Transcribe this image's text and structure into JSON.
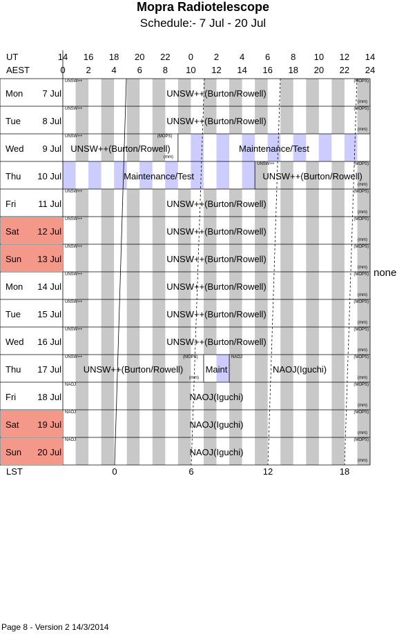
{
  "title": "Mopra Radiotelescope",
  "subtitle": "Schedule:- 7  Jul - 20 Jul",
  "ut_label": "UT",
  "aest_label": "AEST",
  "lst_label": "LST",
  "ut_ticks": [
    "14",
    "16",
    "18",
    "20",
    "22",
    "0",
    "2",
    "4",
    "6",
    "8",
    "10",
    "12",
    "14"
  ],
  "aest_ticks": [
    "0",
    "2",
    "4",
    "6",
    "8",
    "10",
    "12",
    "14",
    "16",
    "18",
    "20",
    "22",
    "24"
  ],
  "lst_ticks": [
    "0",
    "6",
    "12",
    "18"
  ],
  "none_label": "none",
  "footer": "Page 8 - Version 2  14/3/2014",
  "colors": {
    "weekend": "#f4988a",
    "stripe": "#c8c8c8",
    "maint": "#ccccff"
  },
  "days": [
    {
      "name": "Mon",
      "date": "7  Jul",
      "weekend": false
    },
    {
      "name": "Tue",
      "date": "8  Jul",
      "weekend": false
    },
    {
      "name": "Wed",
      "date": "9  Jul",
      "weekend": false
    },
    {
      "name": "Thu",
      "date": "10 Jul",
      "weekend": false
    },
    {
      "name": "Fri",
      "date": "11 Jul",
      "weekend": false
    },
    {
      "name": "Sat",
      "date": "12 Jul",
      "weekend": true
    },
    {
      "name": "Sun",
      "date": "13 Jul",
      "weekend": true
    },
    {
      "name": "Mon",
      "date": "14 Jul",
      "weekend": false
    },
    {
      "name": "Tue",
      "date": "15 Jul",
      "weekend": false
    },
    {
      "name": "Wed",
      "date": "16 Jul",
      "weekend": false
    },
    {
      "name": "Thu",
      "date": "17 Jul",
      "weekend": false
    },
    {
      "name": "Fri",
      "date": "18 Jul",
      "weekend": false
    },
    {
      "name": "Sat",
      "date": "19 Jul",
      "weekend": true
    },
    {
      "name": "Sun",
      "date": "20 Jul",
      "weekend": true
    }
  ],
  "rows": [
    {
      "segments": [
        {
          "start": 0,
          "end": 24,
          "label": "UNSW++(Burton/Rowell)",
          "tag": "UNSW++",
          "maint": false
        }
      ],
      "mops": true
    },
    {
      "segments": [
        {
          "start": 0,
          "end": 24,
          "label": "UNSW++(Burton/Rowell)",
          "tag": "UNSW++",
          "maint": false
        }
      ],
      "mops": true
    },
    {
      "segments": [
        {
          "start": 0,
          "end": 9,
          "label": "UNSW++(Burton/Rowell)",
          "tag": "UNSW++",
          "maint": false,
          "mops": true
        },
        {
          "start": 9,
          "end": 24,
          "label": "Maintenance/Test",
          "tag": "",
          "maint": true
        }
      ],
      "mops": false
    },
    {
      "segments": [
        {
          "start": 0,
          "end": 15,
          "label": "Maintenance/Test",
          "tag": "",
          "maint": true
        },
        {
          "start": 15,
          "end": 24,
          "label": "UNSW++(Burton/Rowell)",
          "tag": "UNSW++",
          "maint": false
        }
      ],
      "mops": true
    },
    {
      "segments": [
        {
          "start": 0,
          "end": 24,
          "label": "UNSW++(Burton/Rowell)",
          "tag": "UNSW++",
          "maint": false
        }
      ],
      "mops": true
    },
    {
      "segments": [
        {
          "start": 0,
          "end": 24,
          "label": "UNSW++(Burton/Rowell)",
          "tag": "UNSW++",
          "maint": false
        }
      ],
      "mops": true
    },
    {
      "segments": [
        {
          "start": 0,
          "end": 24,
          "label": "UNSW++(Burton/Rowell)",
          "tag": "UNSW++",
          "maint": false
        }
      ],
      "mops": true
    },
    {
      "segments": [
        {
          "start": 0,
          "end": 24,
          "label": "UNSW++(Burton/Rowell)",
          "tag": "UNSW++",
          "maint": false
        }
      ],
      "mops": true
    },
    {
      "segments": [
        {
          "start": 0,
          "end": 24,
          "label": "UNSW++(Burton/Rowell)",
          "tag": "UNSW++",
          "maint": false
        }
      ],
      "mops": true
    },
    {
      "segments": [
        {
          "start": 0,
          "end": 24,
          "label": "UNSW++(Burton/Rowell)",
          "tag": "UNSW++",
          "maint": false
        }
      ],
      "mops": true
    },
    {
      "segments": [
        {
          "start": 0,
          "end": 11,
          "label": "UNSW++(Burton/Rowell)",
          "tag": "UNSW++",
          "maint": false,
          "mops": true
        },
        {
          "start": 11,
          "end": 13,
          "label": "Maint",
          "tag": "",
          "maint": true
        },
        {
          "start": 13,
          "end": 24,
          "label": "NAOJ(Iguchi)",
          "tag": "NAOJ",
          "maint": false
        }
      ],
      "mops": true
    },
    {
      "segments": [
        {
          "start": 0,
          "end": 24,
          "label": "NAOJ(Iguchi)",
          "tag": "NAOJ",
          "maint": false
        }
      ],
      "mops": true
    },
    {
      "segments": [
        {
          "start": 0,
          "end": 24,
          "label": "NAOJ(Iguchi)",
          "tag": "NAOJ",
          "maint": false
        }
      ],
      "mops": true
    },
    {
      "segments": [
        {
          "start": 0,
          "end": 24,
          "label": "NAOJ(Iguchi)",
          "tag": "NAOJ",
          "maint": false
        }
      ],
      "mops": true
    }
  ],
  "mops_label": "(MOPS)",
  "mm_label": "(mm)"
}
